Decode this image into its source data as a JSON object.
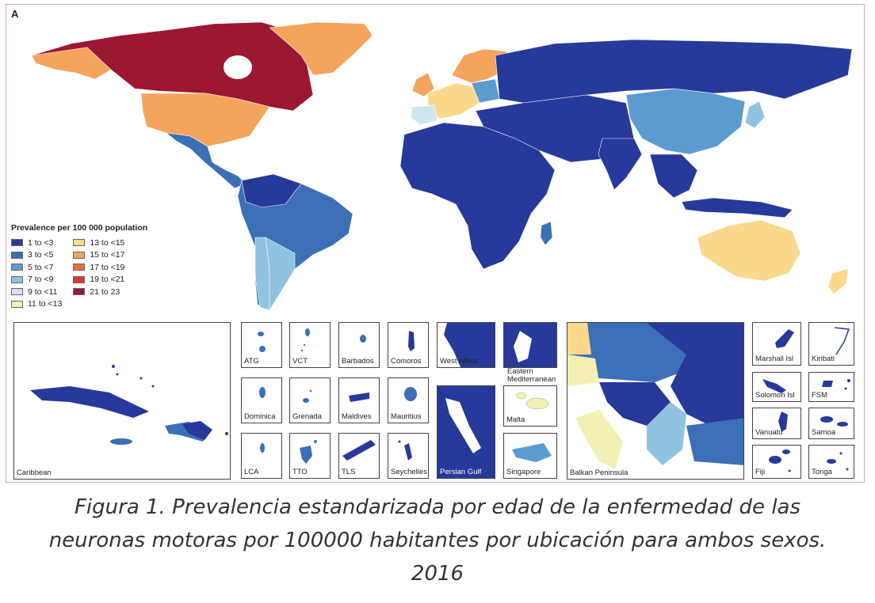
{
  "panel_letter": "A",
  "legend": {
    "title": "Prevalence per 100 000 population",
    "items": [
      {
        "label": "1 to <3",
        "color": "#27399b"
      },
      {
        "label": "3 to <5",
        "color": "#3b6fb6"
      },
      {
        "label": "5 to <7",
        "color": "#5b9bd0"
      },
      {
        "label": "7 to <9",
        "color": "#8fc3e0"
      },
      {
        "label": "9 to <11",
        "color": "#cfe6ef"
      },
      {
        "label": "11 to <13",
        "color": "#f3f0b3"
      },
      {
        "label": "13 to <15",
        "color": "#fbd98c"
      },
      {
        "label": "15 to <17",
        "color": "#f5a45c"
      },
      {
        "label": "17 to <19",
        "color": "#ec6a3d"
      },
      {
        "label": "19 to <21",
        "color": "#d63a2f"
      },
      {
        "label": "21 to 23",
        "color": "#9c1732"
      }
    ]
  },
  "insets": {
    "caribbean": "Caribbean",
    "atg": "ATG",
    "vct": "VCT",
    "barbados": "Barbados",
    "comoros": "Comoros",
    "west_africa": "West Africa",
    "eastern_med": "Eastern\nMediterranean",
    "dominica": "Dominica",
    "grenada": "Grenada",
    "maldives": "Maldives",
    "mauritius": "Mauritius",
    "malta": "Malta",
    "lca": "LCA",
    "tto": "TTO",
    "tls": "TLS",
    "seychelles": "Seychelles",
    "persian_gulf": "Persian Gulf",
    "singapore": "Singapore",
    "balkan": "Balkan Peninsula",
    "marshall": "Marshall Isl",
    "kiribati": "Kiribati",
    "solomon": "Solomon Isl",
    "fsm": "FSM",
    "vanuatu": "Vanuatu",
    "samoa": "Samoa",
    "fiji": "Fiji",
    "tonga": "Tonga"
  },
  "caption": {
    "line1": "Figura 1. Prevalencia estandarizada por edad de la enfermedad de las",
    "line2": "neuronas motoras por 100000 habitantes por ubicación para ambos sexos.",
    "line3": "2016"
  }
}
